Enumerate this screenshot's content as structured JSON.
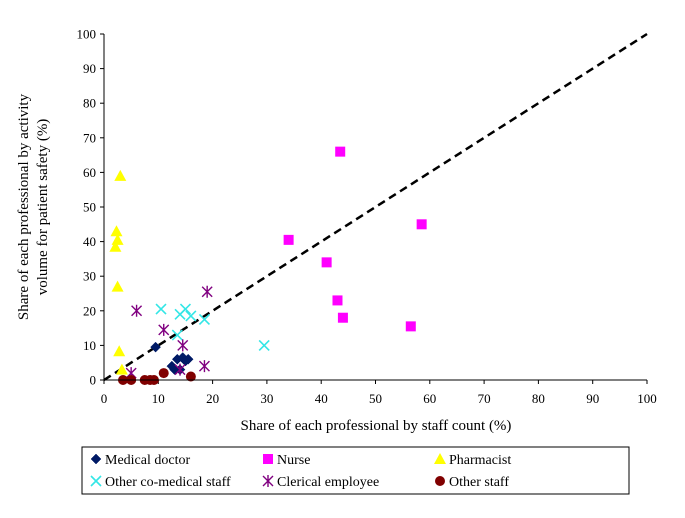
{
  "chart_data": {
    "type": "scatter",
    "title": "",
    "xlabel": "Share of each professional by staff count (%)",
    "ylabel_lines": [
      "Share of each professional by activity",
      "volume for patient safety (%)"
    ],
    "xlim": [
      0,
      100
    ],
    "ylim": [
      0,
      100
    ],
    "xticks": [
      0,
      10,
      20,
      30,
      40,
      50,
      60,
      70,
      80,
      90,
      100
    ],
    "yticks": [
      0,
      10,
      20,
      30,
      40,
      50,
      60,
      70,
      80,
      90,
      100
    ],
    "grid": false,
    "legend_position": "bottom",
    "reference_line": {
      "from": [
        0,
        0
      ],
      "to": [
        100,
        100
      ],
      "style": "dashed"
    },
    "series": [
      {
        "name": "Medical doctor",
        "marker": "diamond",
        "color": "#001a66",
        "points": [
          [
            9.5,
            9.5
          ],
          [
            12.5,
            4
          ],
          [
            13.5,
            6
          ],
          [
            14.5,
            6.5
          ],
          [
            15,
            5.5
          ],
          [
            15.5,
            6
          ],
          [
            13,
            3
          ],
          [
            14,
            3
          ]
        ]
      },
      {
        "name": "Nurse",
        "marker": "square",
        "color": "#ff00ff",
        "points": [
          [
            43.5,
            66
          ],
          [
            34,
            40.5
          ],
          [
            41,
            34
          ],
          [
            43,
            23
          ],
          [
            44,
            18
          ],
          [
            56.5,
            15.5
          ],
          [
            58.5,
            45
          ]
        ]
      },
      {
        "name": "Pharmacist",
        "marker": "triangle",
        "color": "#ffff00",
        "points": [
          [
            3,
            59
          ],
          [
            2.3,
            43
          ],
          [
            2.5,
            40.5
          ],
          [
            2.1,
            38.5
          ],
          [
            2.5,
            27
          ],
          [
            2.8,
            8.3
          ],
          [
            3.3,
            3
          ]
        ]
      },
      {
        "name": "Other co-medical staff",
        "marker": "x",
        "color": "#33e6e6",
        "points": [
          [
            10.5,
            20.5
          ],
          [
            14,
            19
          ],
          [
            15,
            20.5
          ],
          [
            16,
            18.5
          ],
          [
            18.5,
            17.5
          ],
          [
            13.5,
            13
          ],
          [
            29.5,
            10
          ]
        ]
      },
      {
        "name": "Clerical employee",
        "marker": "star",
        "color": "#800080",
        "points": [
          [
            19,
            25.5
          ],
          [
            6,
            20
          ],
          [
            11,
            14.5
          ],
          [
            14.5,
            10
          ],
          [
            18.5,
            4
          ],
          [
            5,
            2
          ],
          [
            14,
            3
          ]
        ]
      },
      {
        "name": "Other staff",
        "marker": "circle",
        "color": "#800000",
        "points": [
          [
            3.5,
            0
          ],
          [
            5,
            0
          ],
          [
            7.5,
            0
          ],
          [
            8.5,
            0
          ],
          [
            9.2,
            0
          ],
          [
            11,
            2
          ],
          [
            16,
            1
          ]
        ]
      }
    ]
  }
}
